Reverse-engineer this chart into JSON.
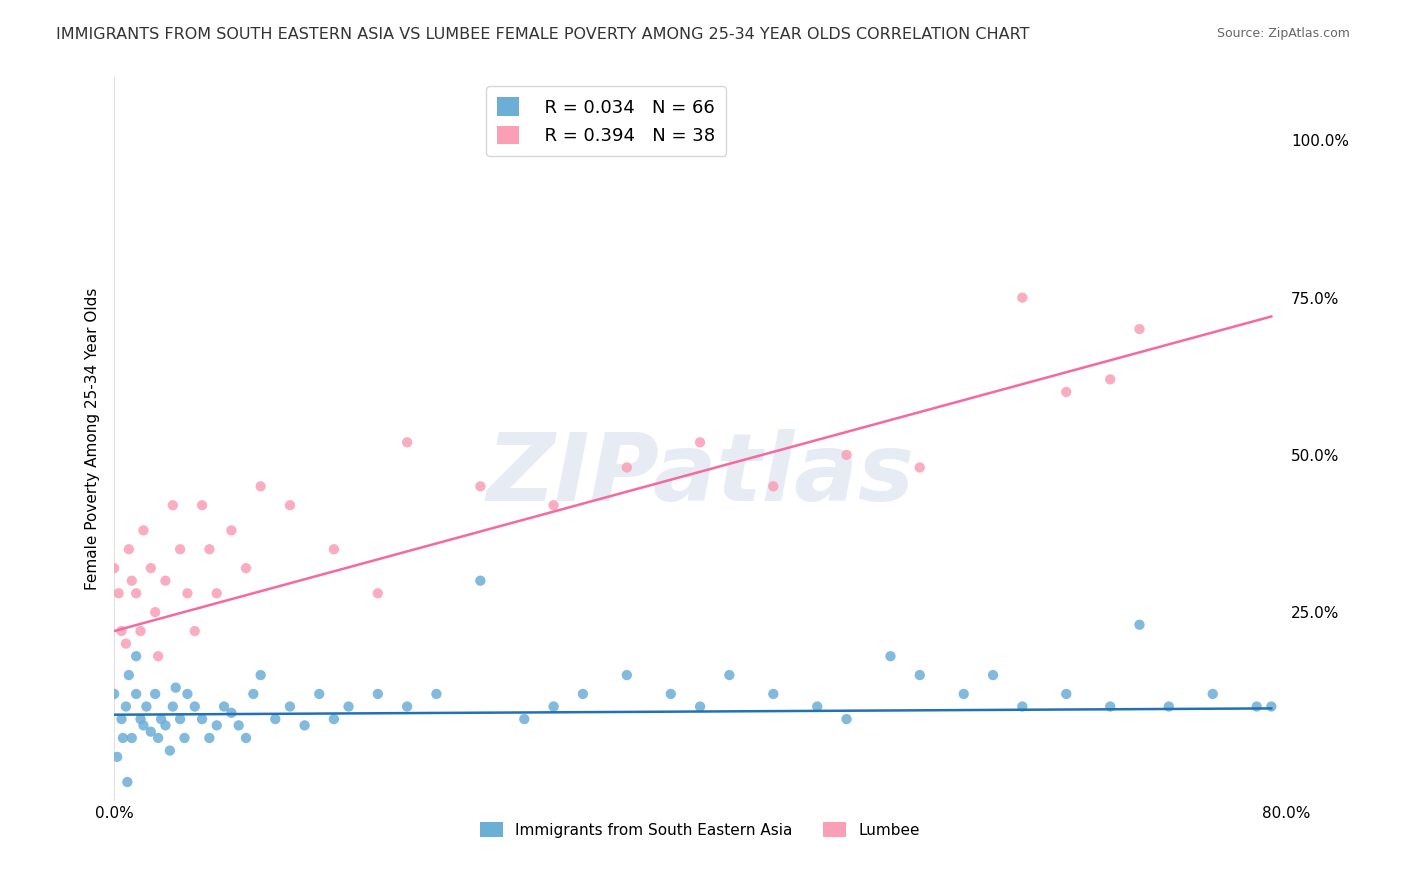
{
  "title": "IMMIGRANTS FROM SOUTH EASTERN ASIA VS LUMBEE FEMALE POVERTY AMONG 25-34 YEAR OLDS CORRELATION CHART",
  "source": "Source: ZipAtlas.com",
  "xlabel": "",
  "ylabel": "Female Poverty Among 25-34 Year Olds",
  "xlim": [
    0.0,
    0.8
  ],
  "ylim": [
    -0.05,
    1.1
  ],
  "xticks": [
    0.0,
    0.1,
    0.2,
    0.3,
    0.4,
    0.5,
    0.6,
    0.7,
    0.8
  ],
  "xticklabels": [
    "0.0%",
    "",
    "",
    "",
    "",
    "",
    "",
    "",
    "80.0%"
  ],
  "yticks_right": [
    0.0,
    0.25,
    0.5,
    0.75,
    1.0
  ],
  "yticklabels_right": [
    "",
    "25.0%",
    "50.0%",
    "75.0%",
    "100.0%"
  ],
  "blue_color": "#6baed6",
  "pink_color": "#fa9fb5",
  "blue_R": 0.034,
  "blue_N": 66,
  "pink_R": 0.394,
  "pink_N": 38,
  "watermark": "ZIPatlas",
  "watermark_color": "#d0d8e8",
  "background_color": "#ffffff",
  "grid_color": "#e0e0e0",
  "blue_scatter_x": [
    0.0,
    0.005,
    0.008,
    0.01,
    0.012,
    0.015,
    0.018,
    0.02,
    0.022,
    0.025,
    0.028,
    0.03,
    0.032,
    0.035,
    0.038,
    0.04,
    0.042,
    0.045,
    0.048,
    0.05,
    0.055,
    0.06,
    0.065,
    0.07,
    0.075,
    0.08,
    0.085,
    0.09,
    0.095,
    0.1,
    0.11,
    0.12,
    0.13,
    0.14,
    0.15,
    0.16,
    0.18,
    0.2,
    0.22,
    0.25,
    0.28,
    0.3,
    0.32,
    0.35,
    0.38,
    0.4,
    0.42,
    0.45,
    0.48,
    0.5,
    0.53,
    0.55,
    0.58,
    0.6,
    0.62,
    0.65,
    0.68,
    0.7,
    0.72,
    0.75,
    0.78,
    0.79,
    0.002,
    0.006,
    0.009,
    0.015
  ],
  "blue_scatter_y": [
    0.12,
    0.08,
    0.1,
    0.15,
    0.05,
    0.12,
    0.08,
    0.07,
    0.1,
    0.06,
    0.12,
    0.05,
    0.08,
    0.07,
    0.03,
    0.1,
    0.13,
    0.08,
    0.05,
    0.12,
    0.1,
    0.08,
    0.05,
    0.07,
    0.1,
    0.09,
    0.07,
    0.05,
    0.12,
    0.15,
    0.08,
    0.1,
    0.07,
    0.12,
    0.08,
    0.1,
    0.12,
    0.1,
    0.12,
    0.3,
    0.08,
    0.1,
    0.12,
    0.15,
    0.12,
    0.1,
    0.15,
    0.12,
    0.1,
    0.08,
    0.18,
    0.15,
    0.12,
    0.15,
    0.1,
    0.12,
    0.1,
    0.23,
    0.1,
    0.12,
    0.1,
    0.1,
    0.02,
    0.05,
    -0.02,
    0.18
  ],
  "pink_scatter_x": [
    0.0,
    0.003,
    0.005,
    0.008,
    0.01,
    0.012,
    0.015,
    0.018,
    0.02,
    0.025,
    0.028,
    0.03,
    0.035,
    0.04,
    0.045,
    0.05,
    0.055,
    0.06,
    0.065,
    0.07,
    0.08,
    0.09,
    0.1,
    0.12,
    0.15,
    0.18,
    0.2,
    0.25,
    0.3,
    0.35,
    0.4,
    0.45,
    0.5,
    0.55,
    0.62,
    0.65,
    0.68,
    0.7
  ],
  "pink_scatter_y": [
    0.32,
    0.28,
    0.22,
    0.2,
    0.35,
    0.3,
    0.28,
    0.22,
    0.38,
    0.32,
    0.25,
    0.18,
    0.3,
    0.42,
    0.35,
    0.28,
    0.22,
    0.42,
    0.35,
    0.28,
    0.38,
    0.32,
    0.45,
    0.42,
    0.35,
    0.28,
    0.52,
    0.45,
    0.42,
    0.48,
    0.52,
    0.45,
    0.5,
    0.48,
    0.75,
    0.6,
    0.62,
    0.7
  ],
  "blue_trend_x": [
    0.0,
    0.79
  ],
  "blue_trend_y": [
    0.087,
    0.097
  ],
  "pink_trend_x": [
    0.0,
    0.79
  ],
  "pink_trend_y": [
    0.22,
    0.72
  ],
  "legend_box_color": "#ffffff",
  "legend_border_color": "#cccccc"
}
